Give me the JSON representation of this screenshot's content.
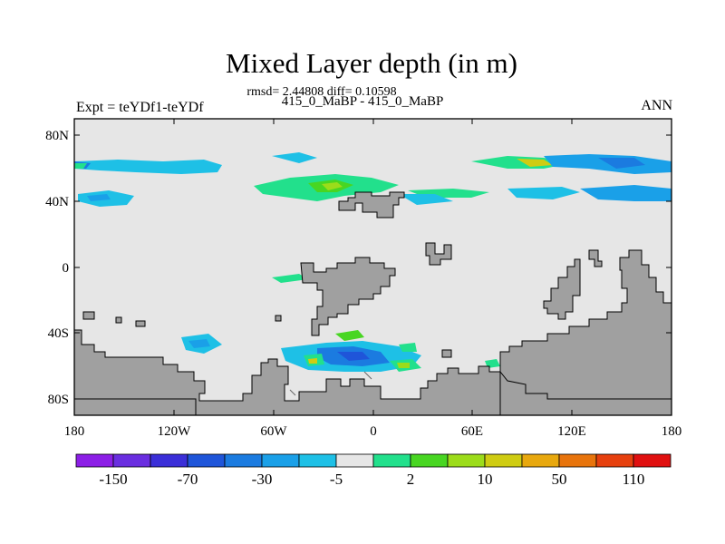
{
  "title": "Mixed Layer depth (in m)",
  "stats_line": "rmsd= 2.44808 diff= 0.10598",
  "subtitle": "415_0_MaBP - 415_0_MaBP",
  "left_label": "Expt = teYDf1-teYDf",
  "right_label": "ANN",
  "lat_ticks": [
    "80N",
    "40N",
    "0",
    "40S",
    "80S"
  ],
  "lon_ticks": [
    "180",
    "120W",
    "60W",
    "0",
    "60E",
    "120E",
    "180"
  ],
  "colorbar": {
    "colors": [
      "#8c1fe6",
      "#6a2ee0",
      "#3b2fd8",
      "#1f55d9",
      "#1b7be0",
      "#1aa0e8",
      "#1ec0e6",
      "#e6e6e6",
      "#22e08c",
      "#48d622",
      "#9cdc1a",
      "#cfcc12",
      "#e8a80e",
      "#e8740c",
      "#e6400e",
      "#e01010"
    ],
    "labels": [
      "-150",
      "-70",
      "-30",
      "-5",
      "2",
      "10",
      "50",
      "110"
    ]
  },
  "legend_colors": {
    "ocean": "#e6e6e6",
    "land": "#a0a0a0",
    "border": "#000000"
  }
}
